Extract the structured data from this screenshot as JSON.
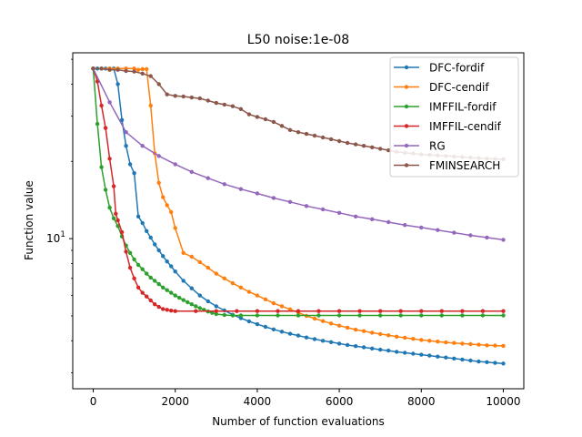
{
  "chart_data": {
    "type": "line",
    "title": "L50  noise:1e-08",
    "xlabel": "Number of function evaluations",
    "ylabel": "Function value",
    "xlim": [
      -500,
      10500
    ],
    "ylim": [
      2.6,
      53
    ],
    "yscale": "log",
    "xticks": [
      0,
      2000,
      4000,
      6000,
      8000,
      10000
    ],
    "xtick_labels": [
      "0",
      "2000",
      "4000",
      "6000",
      "8000",
      "10000"
    ],
    "yticks": [
      10
    ],
    "ytick_labels": [
      "10"
    ],
    "legend_position": "top-right",
    "series": [
      {
        "name": "DFC-fordif",
        "color": "#1f77b4",
        "points": [
          [
            0,
            46
          ],
          [
            100,
            46
          ],
          [
            200,
            46
          ],
          [
            300,
            46
          ],
          [
            400,
            46
          ],
          [
            500,
            46
          ],
          [
            600,
            40
          ],
          [
            700,
            29
          ],
          [
            800,
            23
          ],
          [
            900,
            19.5
          ],
          [
            1000,
            18
          ],
          [
            1100,
            12.2
          ],
          [
            1200,
            11.5
          ],
          [
            1300,
            10.7
          ],
          [
            1400,
            10.1
          ],
          [
            1500,
            9.5
          ],
          [
            1600,
            9.0
          ],
          [
            1700,
            8.55
          ],
          [
            1800,
            8.15
          ],
          [
            1900,
            7.8
          ],
          [
            2000,
            7.45
          ],
          [
            2200,
            6.85
          ],
          [
            2400,
            6.4
          ],
          [
            2600,
            6.0
          ],
          [
            2800,
            5.7
          ],
          [
            3000,
            5.45
          ],
          [
            3200,
            5.25
          ],
          [
            3400,
            5.05
          ],
          [
            3600,
            4.9
          ],
          [
            3800,
            4.76
          ],
          [
            4000,
            4.64
          ],
          [
            4200,
            4.53
          ],
          [
            4400,
            4.43
          ],
          [
            4600,
            4.34
          ],
          [
            4800,
            4.26
          ],
          [
            5000,
            4.19
          ],
          [
            5200,
            4.12
          ],
          [
            5400,
            4.06
          ],
          [
            5600,
            4.0
          ],
          [
            5800,
            3.95
          ],
          [
            6000,
            3.9
          ],
          [
            6200,
            3.85
          ],
          [
            6400,
            3.81
          ],
          [
            6600,
            3.77
          ],
          [
            6800,
            3.73
          ],
          [
            7000,
            3.69
          ],
          [
            7200,
            3.66
          ],
          [
            7400,
            3.62
          ],
          [
            7600,
            3.59
          ],
          [
            7800,
            3.56
          ],
          [
            8000,
            3.53
          ],
          [
            8200,
            3.5
          ],
          [
            8400,
            3.47
          ],
          [
            8600,
            3.44
          ],
          [
            8800,
            3.41
          ],
          [
            9000,
            3.38
          ],
          [
            9200,
            3.35
          ],
          [
            9400,
            3.32
          ],
          [
            9600,
            3.3
          ],
          [
            9800,
            3.28
          ],
          [
            10000,
            3.26
          ]
        ]
      },
      {
        "name": "DFC-cendif",
        "color": "#ff7f0e",
        "points": [
          [
            0,
            46
          ],
          [
            200,
            46
          ],
          [
            400,
            46
          ],
          [
            600,
            46
          ],
          [
            800,
            46
          ],
          [
            1000,
            46
          ],
          [
            1100,
            45.5
          ],
          [
            1200,
            45.8
          ],
          [
            1300,
            45.8
          ],
          [
            1400,
            33
          ],
          [
            1500,
            21.5
          ],
          [
            1600,
            16.5
          ],
          [
            1700,
            14.5
          ],
          [
            1800,
            13.5
          ],
          [
            1900,
            12.7
          ],
          [
            2000,
            11.0
          ],
          [
            2200,
            8.8
          ],
          [
            2400,
            8.5
          ],
          [
            2600,
            8.1
          ],
          [
            2800,
            7.7
          ],
          [
            3000,
            7.3
          ],
          [
            3200,
            7.0
          ],
          [
            3400,
            6.7
          ],
          [
            3600,
            6.45
          ],
          [
            3800,
            6.2
          ],
          [
            4000,
            6.0
          ],
          [
            4200,
            5.8
          ],
          [
            4400,
            5.6
          ],
          [
            4600,
            5.45
          ],
          [
            4800,
            5.3
          ],
          [
            5000,
            5.15
          ],
          [
            5200,
            5.0
          ],
          [
            5400,
            4.88
          ],
          [
            5600,
            4.77
          ],
          [
            5800,
            4.67
          ],
          [
            6000,
            4.58
          ],
          [
            6200,
            4.5
          ],
          [
            6400,
            4.42
          ],
          [
            6600,
            4.36
          ],
          [
            6800,
            4.3
          ],
          [
            7000,
            4.25
          ],
          [
            7200,
            4.2
          ],
          [
            7400,
            4.15
          ],
          [
            7600,
            4.11
          ],
          [
            7800,
            4.07
          ],
          [
            8000,
            4.03
          ],
          [
            8200,
            4.0
          ],
          [
            8400,
            3.97
          ],
          [
            8600,
            3.94
          ],
          [
            8800,
            3.92
          ],
          [
            9000,
            3.9
          ],
          [
            9200,
            3.88
          ],
          [
            9400,
            3.86
          ],
          [
            9600,
            3.84
          ],
          [
            9800,
            3.83
          ],
          [
            10000,
            3.82
          ]
        ]
      },
      {
        "name": "IMFFIL-fordif",
        "color": "#2ca02c",
        "points": [
          [
            0,
            46
          ],
          [
            100,
            28
          ],
          [
            200,
            19
          ],
          [
            300,
            15.5
          ],
          [
            400,
            13.2
          ],
          [
            500,
            12.0
          ],
          [
            600,
            11.2
          ],
          [
            700,
            10.2
          ],
          [
            800,
            9.4
          ],
          [
            900,
            8.8
          ],
          [
            1000,
            8.3
          ],
          [
            1100,
            7.9
          ],
          [
            1200,
            7.6
          ],
          [
            1300,
            7.3
          ],
          [
            1400,
            7.05
          ],
          [
            1500,
            6.85
          ],
          [
            1600,
            6.65
          ],
          [
            1700,
            6.45
          ],
          [
            1800,
            6.3
          ],
          [
            1900,
            6.15
          ],
          [
            2000,
            6.0
          ],
          [
            2100,
            5.88
          ],
          [
            2200,
            5.76
          ],
          [
            2300,
            5.65
          ],
          [
            2400,
            5.55
          ],
          [
            2500,
            5.45
          ],
          [
            2600,
            5.36
          ],
          [
            2700,
            5.28
          ],
          [
            2800,
            5.2
          ],
          [
            2900,
            5.14
          ],
          [
            3000,
            5.08
          ],
          [
            3200,
            5.04
          ],
          [
            3400,
            5.02
          ],
          [
            3600,
            5.02
          ],
          [
            4000,
            5.02
          ],
          [
            4500,
            5.02
          ],
          [
            5000,
            5.02
          ],
          [
            5500,
            5.02
          ],
          [
            6000,
            5.02
          ],
          [
            6500,
            5.02
          ],
          [
            7000,
            5.02
          ],
          [
            7500,
            5.02
          ],
          [
            8000,
            5.02
          ],
          [
            8500,
            5.02
          ],
          [
            9000,
            5.02
          ],
          [
            9500,
            5.02
          ],
          [
            10000,
            5.02
          ]
        ]
      },
      {
        "name": "IMFFIL-cendif",
        "color": "#d62728",
        "points": [
          [
            0,
            46
          ],
          [
            100,
            41
          ],
          [
            200,
            33
          ],
          [
            300,
            27
          ],
          [
            400,
            20.5
          ],
          [
            500,
            16
          ],
          [
            550,
            12.5
          ],
          [
            600,
            11.8
          ],
          [
            700,
            10.6
          ],
          [
            800,
            8.9
          ],
          [
            900,
            7.7
          ],
          [
            1000,
            7.0
          ],
          [
            1100,
            6.45
          ],
          [
            1200,
            6.15
          ],
          [
            1300,
            5.95
          ],
          [
            1400,
            5.75
          ],
          [
            1500,
            5.55
          ],
          [
            1600,
            5.42
          ],
          [
            1700,
            5.32
          ],
          [
            1800,
            5.28
          ],
          [
            1900,
            5.24
          ],
          [
            2000,
            5.22
          ],
          [
            2500,
            5.22
          ],
          [
            3000,
            5.22
          ],
          [
            3500,
            5.22
          ],
          [
            4000,
            5.22
          ],
          [
            4500,
            5.22
          ],
          [
            5000,
            5.22
          ],
          [
            5500,
            5.22
          ],
          [
            6000,
            5.22
          ],
          [
            6500,
            5.22
          ],
          [
            7000,
            5.22
          ],
          [
            7500,
            5.22
          ],
          [
            8000,
            5.22
          ],
          [
            8500,
            5.22
          ],
          [
            9000,
            5.22
          ],
          [
            9500,
            5.22
          ],
          [
            10000,
            5.22
          ]
        ]
      },
      {
        "name": "RG",
        "color": "#9467bd",
        "points": [
          [
            0,
            46
          ],
          [
            400,
            34
          ],
          [
            800,
            26
          ],
          [
            1200,
            23
          ],
          [
            1600,
            21
          ],
          [
            2000,
            19.5
          ],
          [
            2400,
            18.2
          ],
          [
            2800,
            17.2
          ],
          [
            3200,
            16.3
          ],
          [
            3600,
            15.6
          ],
          [
            4000,
            15.0
          ],
          [
            4400,
            14.4
          ],
          [
            4800,
            13.9
          ],
          [
            5200,
            13.4
          ],
          [
            5600,
            13.0
          ],
          [
            6000,
            12.6
          ],
          [
            6400,
            12.2
          ],
          [
            6800,
            11.9
          ],
          [
            7200,
            11.6
          ],
          [
            7600,
            11.3
          ],
          [
            8000,
            11.05
          ],
          [
            8400,
            10.8
          ],
          [
            8800,
            10.55
          ],
          [
            9200,
            10.3
          ],
          [
            9600,
            10.1
          ],
          [
            10000,
            9.9
          ]
        ]
      },
      {
        "name": "FMINSEARCH",
        "color": "#8c564b",
        "points": [
          [
            0,
            46
          ],
          [
            200,
            46
          ],
          [
            400,
            45.5
          ],
          [
            600,
            45.5
          ],
          [
            800,
            45
          ],
          [
            1000,
            44.8
          ],
          [
            1200,
            44
          ],
          [
            1400,
            43
          ],
          [
            1600,
            40
          ],
          [
            1800,
            36.5
          ],
          [
            2000,
            36
          ],
          [
            2200,
            35.8
          ],
          [
            2400,
            35.5
          ],
          [
            2600,
            35.2
          ],
          [
            2800,
            34.5
          ],
          [
            3000,
            33.8
          ],
          [
            3200,
            33.3
          ],
          [
            3400,
            32.8
          ],
          [
            3600,
            32
          ],
          [
            3800,
            30.5
          ],
          [
            4000,
            29.8
          ],
          [
            4200,
            29.2
          ],
          [
            4400,
            28.5
          ],
          [
            4600,
            27.5
          ],
          [
            4800,
            26.5
          ],
          [
            5000,
            26
          ],
          [
            5200,
            25.6
          ],
          [
            5400,
            25.2
          ],
          [
            5600,
            24.8
          ],
          [
            5800,
            24.4
          ],
          [
            6000,
            24
          ],
          [
            6200,
            23.6
          ],
          [
            6400,
            23.3
          ],
          [
            6600,
            23
          ],
          [
            6800,
            22.7
          ],
          [
            7000,
            22.4
          ],
          [
            7200,
            22.1
          ],
          [
            7400,
            21.8
          ],
          [
            7600,
            21.6
          ],
          [
            7800,
            21.45
          ],
          [
            8000,
            21.3
          ],
          [
            8200,
            21.2
          ],
          [
            8400,
            21.1
          ],
          [
            8600,
            21
          ],
          [
            8800,
            20.9
          ],
          [
            9000,
            20.8
          ],
          [
            9200,
            20.7
          ],
          [
            9400,
            20.6
          ],
          [
            9600,
            20.5
          ],
          [
            9800,
            20.45
          ],
          [
            10000,
            20.4
          ]
        ]
      }
    ]
  }
}
